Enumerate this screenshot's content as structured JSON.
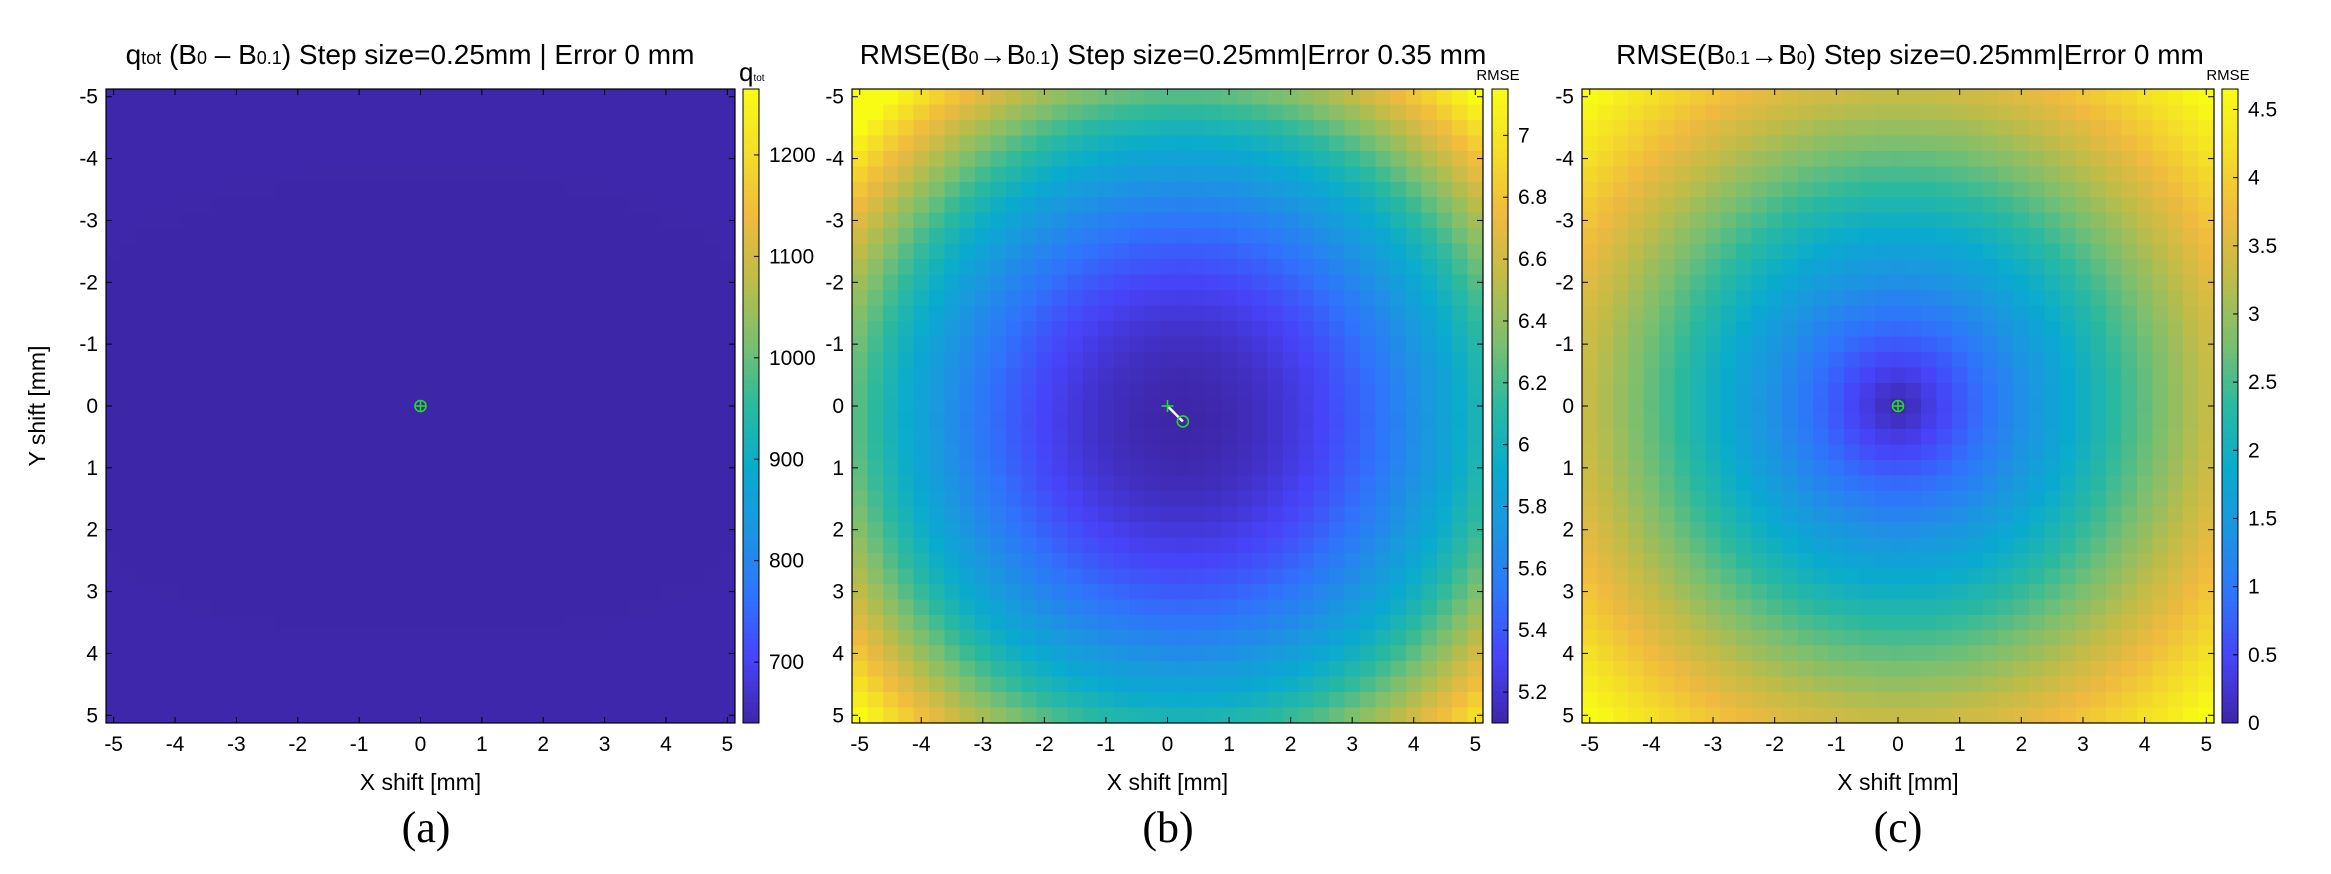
{
  "chart_data": [
    {
      "type": "heatmap",
      "panel_label": "(a)",
      "title_parts": [
        "q",
        "tot",
        " (B",
        "0",
        " – B",
        "0.1",
        ") Step size=0.25mm | Error 0 mm"
      ],
      "xlabel": "X shift [mm]",
      "ylabel": "Y shift [mm]",
      "xlim": [
        -5,
        5
      ],
      "ylim": [
        -5,
        5
      ],
      "x_ticks": [
        "-5",
        "-4",
        "-3",
        "-2",
        "-1",
        "0",
        "1",
        "2",
        "3",
        "4",
        "5"
      ],
      "y_ticks": [
        "-5",
        "-4",
        "-3",
        "-2",
        "-1",
        "0",
        "1",
        "2",
        "3",
        "4",
        "5"
      ],
      "step_mm": 0.25,
      "value_range": [
        640,
        1265
      ],
      "colorbar_title_parts": [
        "q",
        "tot"
      ],
      "colorbar_ticks": [
        "700",
        "800",
        "900",
        "1000",
        "1100",
        "1200"
      ],
      "colorbar_tick_values": [
        700,
        800,
        900,
        1000,
        1100,
        1200
      ],
      "model": {
        "min": 640,
        "ax": 0.024,
        "ay": 0.078
      },
      "true_position": [
        0,
        0
      ],
      "estimated_position": [
        0,
        0
      ]
    },
    {
      "type": "heatmap",
      "panel_label": "(b)",
      "title_parts": [
        "RMSE(B",
        "0",
        "→B",
        "0.1",
        ") Step size=0.25mm|Error 0.35 mm"
      ],
      "xlabel": "X shift [mm]",
      "ylabel": "",
      "xlim": [
        -5,
        5
      ],
      "ylim": [
        -5,
        5
      ],
      "x_ticks": [
        "-5",
        "-4",
        "-3",
        "-2",
        "-1",
        "0",
        "1",
        "2",
        "3",
        "4",
        "5"
      ],
      "y_ticks": [
        "-5",
        "-4",
        "-3",
        "-2",
        "-1",
        "0",
        "1",
        "2",
        "3",
        "4",
        "5"
      ],
      "step_mm": 0.25,
      "value_range": [
        5.1,
        7.15
      ],
      "colorbar_title_parts": [
        "RMSE"
      ],
      "colorbar_ticks": [
        "5.2",
        "5.4",
        "5.6",
        "5.8",
        "6",
        "6.2",
        "6.4",
        "6.6",
        "6.8",
        "7"
      ],
      "colorbar_tick_values": [
        5.2,
        5.4,
        5.6,
        5.8,
        6.0,
        6.2,
        6.4,
        6.6,
        6.8,
        7.0
      ],
      "model": {
        "min": 5.1,
        "ax": 0.0409,
        "ay": 0.0409,
        "cx": 0.25,
        "cy": 0.25
      },
      "true_position": [
        0,
        0
      ],
      "estimated_position": [
        0.25,
        0.25
      ]
    },
    {
      "type": "heatmap",
      "panel_label": "(c)",
      "title_parts": [
        "RMSE(B",
        "0.1",
        "→B",
        "0",
        ") Step size=0.25mm|Error 0 mm"
      ],
      "xlabel": "X shift [mm]",
      "ylabel": "",
      "xlim": [
        -5,
        5
      ],
      "ylim": [
        -5,
        5
      ],
      "x_ticks": [
        "-5",
        "-4",
        "-3",
        "-2",
        "-1",
        "0",
        "1",
        "2",
        "3",
        "4",
        "5"
      ],
      "y_ticks": [
        "-5",
        "-4",
        "-3",
        "-2",
        "-1",
        "0",
        "1",
        "2",
        "3",
        "4",
        "5"
      ],
      "step_mm": 0.25,
      "value_range": [
        0,
        4.65
      ],
      "colorbar_title_parts": [
        "RMSE"
      ],
      "colorbar_ticks": [
        "0",
        "0.5",
        "1",
        "1.5",
        "2",
        "2.5",
        "3",
        "3.5",
        "4",
        "4.5"
      ],
      "colorbar_tick_values": [
        0,
        0.5,
        1.0,
        1.5,
        2.0,
        2.5,
        3.0,
        3.5,
        4.0,
        4.5
      ],
      "model": {
        "min": 0,
        "ax": 0.66,
        "ay": 0.66,
        "mode": "sqrt"
      },
      "true_position": [
        0,
        0
      ],
      "estimated_position": [
        0,
        0
      ]
    }
  ],
  "colors": {
    "parula": [
      "#3e26a8",
      "#4743f8",
      "#2f74fb",
      "#1d94e2",
      "#09abce",
      "#2ab99f",
      "#7bbf6f",
      "#bebc48",
      "#f0ba3f",
      "#f4dd28",
      "#f9fb15"
    ],
    "marker": "#22dd22",
    "estimate_line": "#ffffff",
    "axis": "#000000"
  }
}
